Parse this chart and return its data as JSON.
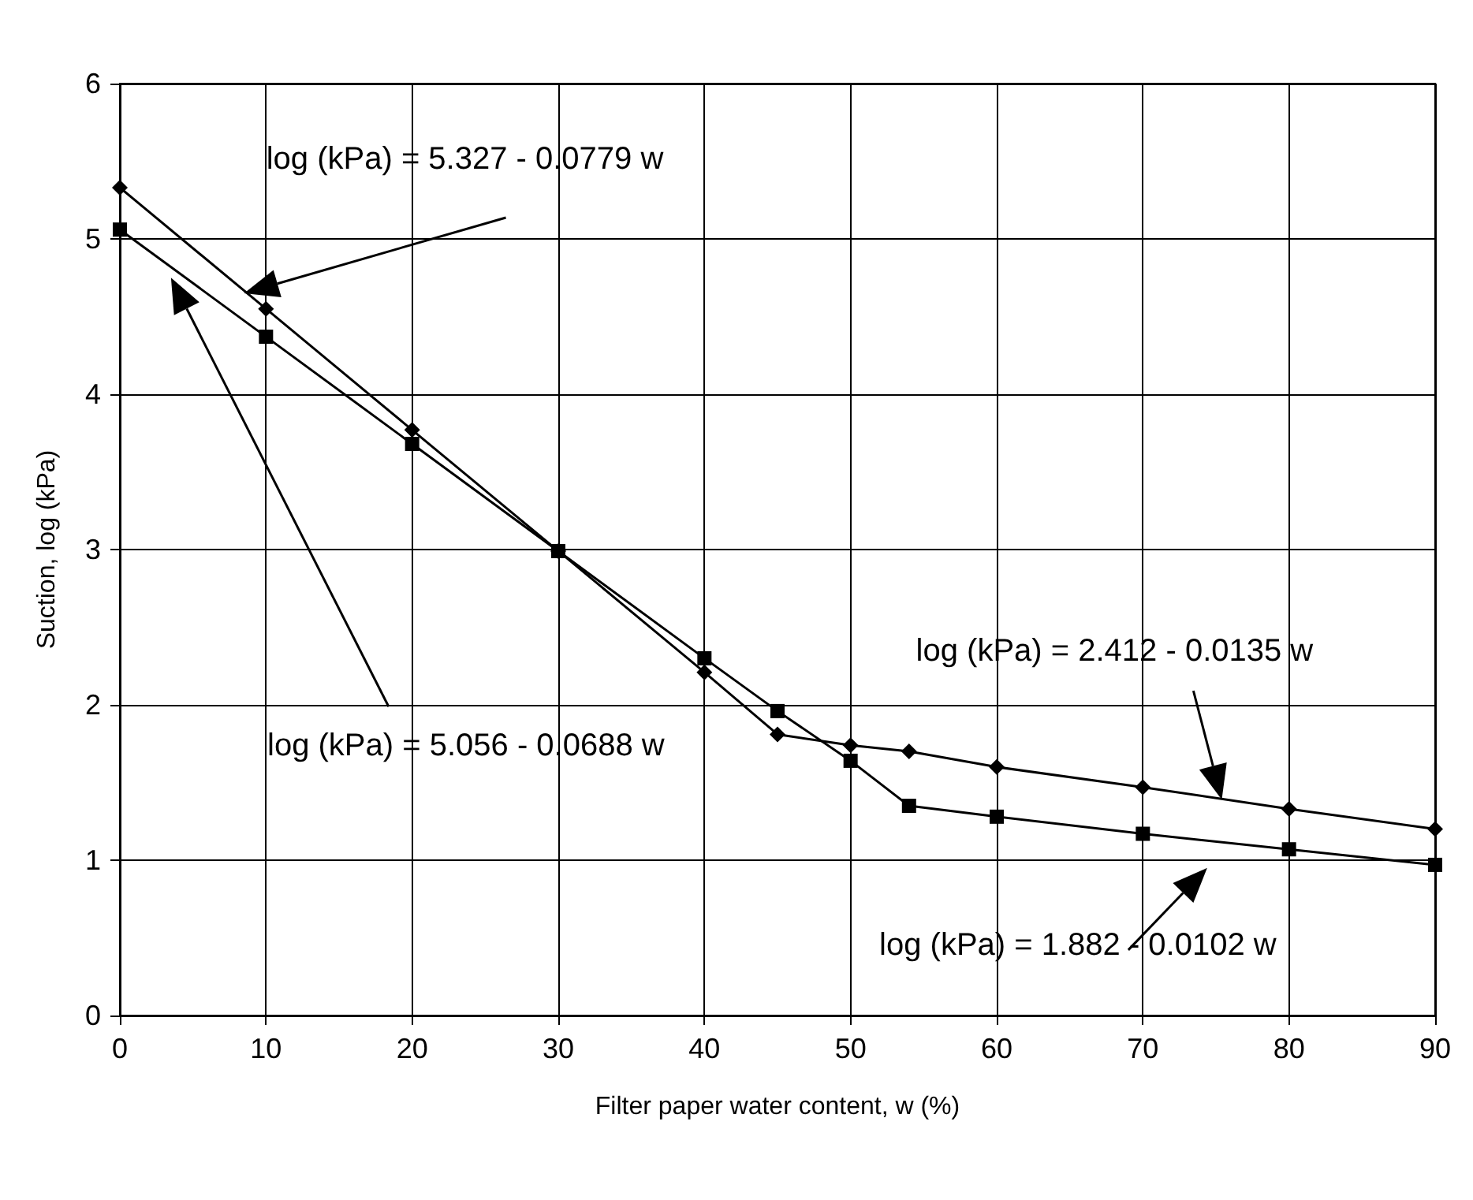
{
  "chart_data": {
    "type": "line",
    "xlabel": "Filter paper water content, w (%)",
    "ylabel": "Suction, log (kPa)",
    "xlim": [
      0,
      90
    ],
    "xticks": [
      0,
      10,
      20,
      30,
      40,
      50,
      60,
      70,
      80,
      90
    ],
    "ylim": [
      0,
      6
    ],
    "yticks": [
      0,
      1,
      2,
      3,
      4,
      5,
      6
    ],
    "grid": true,
    "series": [
      {
        "color": "#000000",
        "marker": "diamond",
        "x": [
          0,
          10,
          20,
          30,
          40,
          45,
          50,
          54,
          60,
          70,
          80,
          90
        ],
        "values": [
          5.33,
          4.55,
          3.77,
          2.99,
          2.21,
          1.81,
          1.74,
          1.7,
          1.6,
          1.47,
          1.33,
          1.2
        ]
      },
      {
        "color": "#000000",
        "marker": "square",
        "x": [
          0,
          10,
          20,
          30,
          40,
          45,
          50,
          54,
          60,
          70,
          80,
          90
        ],
        "values": [
          5.06,
          4.37,
          3.68,
          2.99,
          2.3,
          1.96,
          1.64,
          1.35,
          1.28,
          1.17,
          1.07,
          0.97
        ]
      }
    ],
    "annotations": [
      "log (kPa) = 5.327 - 0.0779 w",
      "log (kPa) = 5.056 - 0.0688 w",
      "log (kPa) = 2.412 - 0.0135 w",
      "log (kPa) = 1.882 - 0.0102 w"
    ]
  }
}
